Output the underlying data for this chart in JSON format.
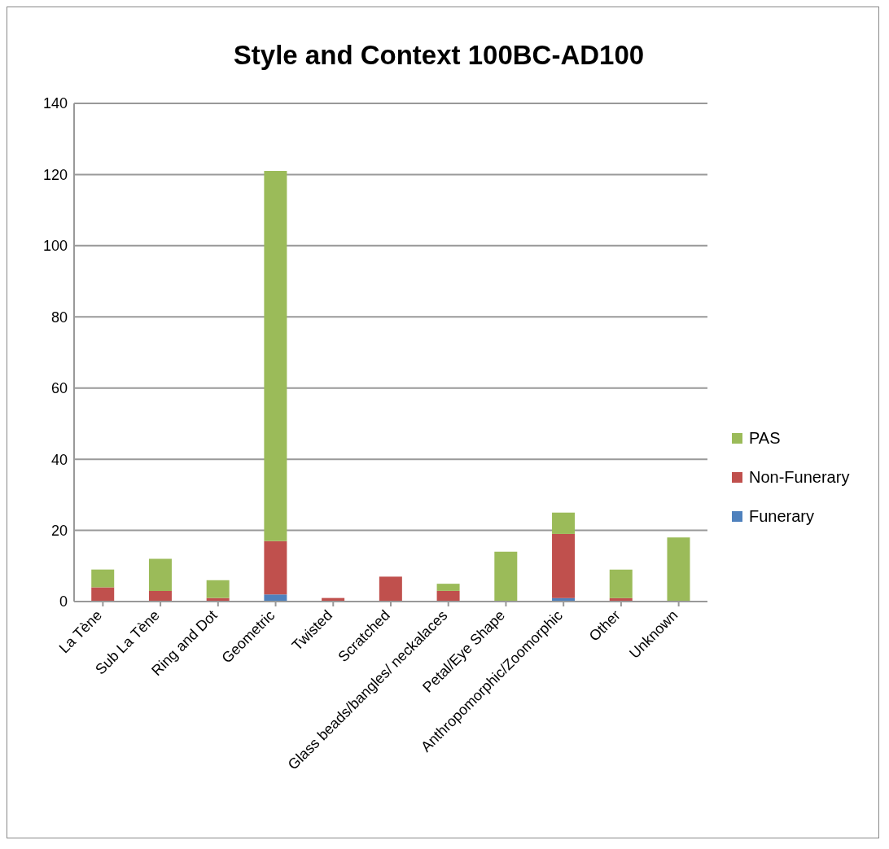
{
  "chart_data": {
    "type": "bar",
    "title": "Style and Context 100BC-AD100",
    "categories": [
      "La Tène",
      "Sub La Tène",
      "Ring and Dot",
      "Geometric",
      "Twisted",
      "Scratched",
      "Glass beads/bangles/ neckalaces",
      "Petal/Eye Shape",
      "Anthropomorphic/Zoomorphic",
      "Other",
      "Unknown"
    ],
    "series": [
      {
        "name": "Funerary",
        "color": "#4f81bd",
        "values": [
          0,
          0,
          0,
          2,
          0,
          0,
          0,
          0,
          1,
          0,
          0
        ]
      },
      {
        "name": "Non-Funerary",
        "color": "#c0504d",
        "values": [
          4,
          3,
          1,
          15,
          1,
          7,
          3,
          0,
          18,
          1,
          0
        ]
      },
      {
        "name": "PAS",
        "color": "#9bbb59",
        "values": [
          5,
          9,
          5,
          104,
          0,
          0,
          2,
          14,
          6,
          8,
          18
        ]
      }
    ],
    "stacked": true,
    "ylim": [
      0,
      140
    ],
    "yticks": [
      0,
      20,
      40,
      60,
      80,
      100,
      120,
      140
    ],
    "grid": "y",
    "legend": "right"
  }
}
